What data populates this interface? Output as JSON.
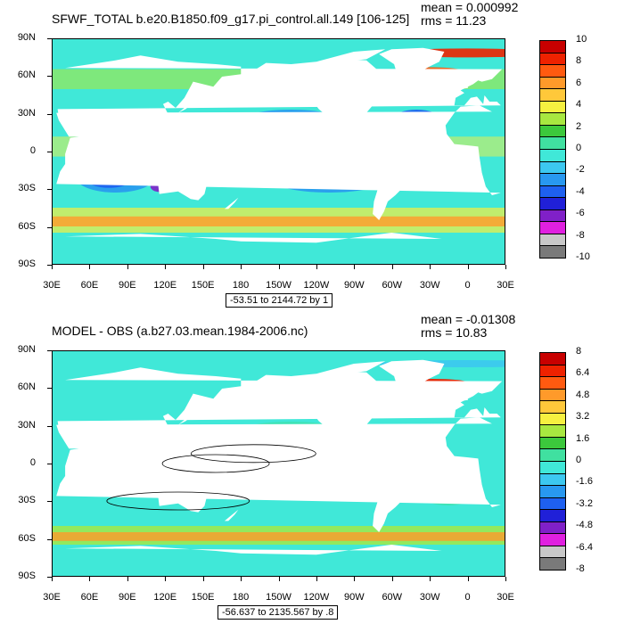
{
  "panels": [
    {
      "title": "SFWF_TOTAL b.e20.B1850.f09_g17.pi_control.all.149 [106-125]",
      "mean": "mean = 0.000992",
      "rms": "rms = 11.23",
      "range": "-53.51 to 2144.72 by 1",
      "colorbar_labels": [
        "10",
        "8",
        "6",
        "4",
        "2",
        "0",
        "-2",
        "-4",
        "-6",
        "-8",
        "-10"
      ],
      "colorbar_colors": [
        "#c80000",
        "#ee2200",
        "#ff5a10",
        "#ff9a2a",
        "#ffc83a",
        "#f6f040",
        "#a8e840",
        "#3cc83c",
        "#40e0a0",
        "#40e8d8",
        "#3cc8f0",
        "#2898f0",
        "#1e60f0",
        "#2020d8",
        "#8020c8",
        "#e020e0",
        "#c8c8c8",
        "#7a7a7a"
      ]
    },
    {
      "title": "MODEL - OBS (a.b27.03.mean.1984-2006.nc)",
      "mean": "mean = -0.01308",
      "rms": "rms = 10.83",
      "range": "-56.637 to 2135.567 by .8",
      "colorbar_labels": [
        "8",
        "6.4",
        "4.8",
        "3.2",
        "1.6",
        "0",
        "-1.6",
        "-3.2",
        "-4.8",
        "-6.4",
        "-8"
      ],
      "colorbar_colors": [
        "#c80000",
        "#ee2200",
        "#ff5a10",
        "#ff9a2a",
        "#ffc83a",
        "#f6f040",
        "#a8e840",
        "#3cc83c",
        "#40e0a0",
        "#40e8d8",
        "#3cc8f0",
        "#2898f0",
        "#1e60f0",
        "#2020d8",
        "#8020c8",
        "#e020e0",
        "#c8c8c8",
        "#7a7a7a"
      ]
    }
  ],
  "lat_labels": [
    "90N",
    "60N",
    "30N",
    "0",
    "30S",
    "60S",
    "90S"
  ],
  "lon_labels": [
    "30E",
    "60E",
    "90E",
    "120E",
    "150E",
    "180",
    "150W",
    "120W",
    "90W",
    "60W",
    "30W",
    "0",
    "30E"
  ],
  "colors": {
    "land": "#ffffff",
    "ocean_base": "#40e8d8",
    "contour": "#000000"
  }
}
